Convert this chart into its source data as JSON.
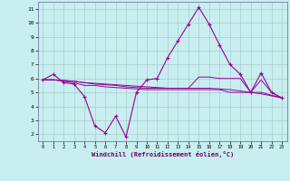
{
  "xlabel": "Windchill (Refroidissement éolien,°C)",
  "bg_color": "#c8eef0",
  "line_color": "#990099",
  "grid_color": "#aacccc",
  "xlim": [
    -0.5,
    23.5
  ],
  "ylim": [
    1.5,
    11.5
  ],
  "yticks": [
    2,
    3,
    4,
    5,
    6,
    7,
    8,
    9,
    10,
    11
  ],
  "xticks": [
    0,
    1,
    2,
    3,
    4,
    5,
    6,
    7,
    8,
    9,
    10,
    11,
    12,
    13,
    14,
    15,
    16,
    17,
    18,
    19,
    20,
    21,
    22,
    23
  ],
  "main_x": [
    0,
    1,
    2,
    3,
    4,
    5,
    6,
    7,
    8,
    9,
    10,
    11,
    12,
    13,
    14,
    15,
    16,
    17,
    18,
    19,
    20,
    21,
    22,
    23
  ],
  "main_y": [
    5.9,
    6.3,
    5.7,
    5.6,
    4.7,
    2.6,
    2.1,
    3.3,
    1.8,
    5.0,
    5.9,
    6.0,
    7.5,
    8.7,
    9.9,
    11.1,
    9.9,
    8.4,
    7.0,
    6.3,
    5.0,
    6.4,
    5.0,
    4.6
  ],
  "flat1_x": [
    0,
    1,
    2,
    3,
    4,
    5,
    6,
    7,
    8,
    9,
    10,
    11,
    12,
    13,
    14,
    15,
    16,
    17,
    18,
    19,
    20,
    21,
    22,
    23
  ],
  "flat1_y": [
    5.9,
    5.9,
    5.85,
    5.8,
    5.7,
    5.65,
    5.6,
    5.55,
    5.5,
    5.45,
    5.4,
    5.35,
    5.3,
    5.3,
    5.3,
    5.3,
    5.3,
    5.25,
    5.2,
    5.1,
    5.0,
    4.9,
    4.75,
    4.6
  ],
  "flat2_x": [
    0,
    1,
    2,
    3,
    4,
    5,
    6,
    7,
    8,
    9,
    10,
    11,
    12,
    13,
    14,
    15,
    16,
    17,
    18,
    19,
    20,
    21,
    22,
    23
  ],
  "flat2_y": [
    5.9,
    5.9,
    5.8,
    5.7,
    5.5,
    5.5,
    5.4,
    5.35,
    5.3,
    5.25,
    5.2,
    5.2,
    5.2,
    5.2,
    5.2,
    5.2,
    5.2,
    5.2,
    5.0,
    5.0,
    5.0,
    5.0,
    4.8,
    4.6
  ],
  "flat3_x": [
    0,
    1,
    2,
    3,
    4,
    5,
    6,
    7,
    8,
    9,
    10,
    11,
    12,
    13,
    14,
    15,
    16,
    17,
    18,
    19,
    20,
    21,
    22,
    23
  ],
  "flat3_y": [
    5.9,
    5.9,
    5.85,
    5.8,
    5.7,
    5.6,
    5.55,
    5.5,
    5.4,
    5.35,
    5.3,
    5.3,
    5.3,
    5.3,
    5.3,
    6.1,
    6.1,
    6.0,
    6.0,
    6.0,
    5.0,
    5.9,
    5.0,
    4.6
  ]
}
